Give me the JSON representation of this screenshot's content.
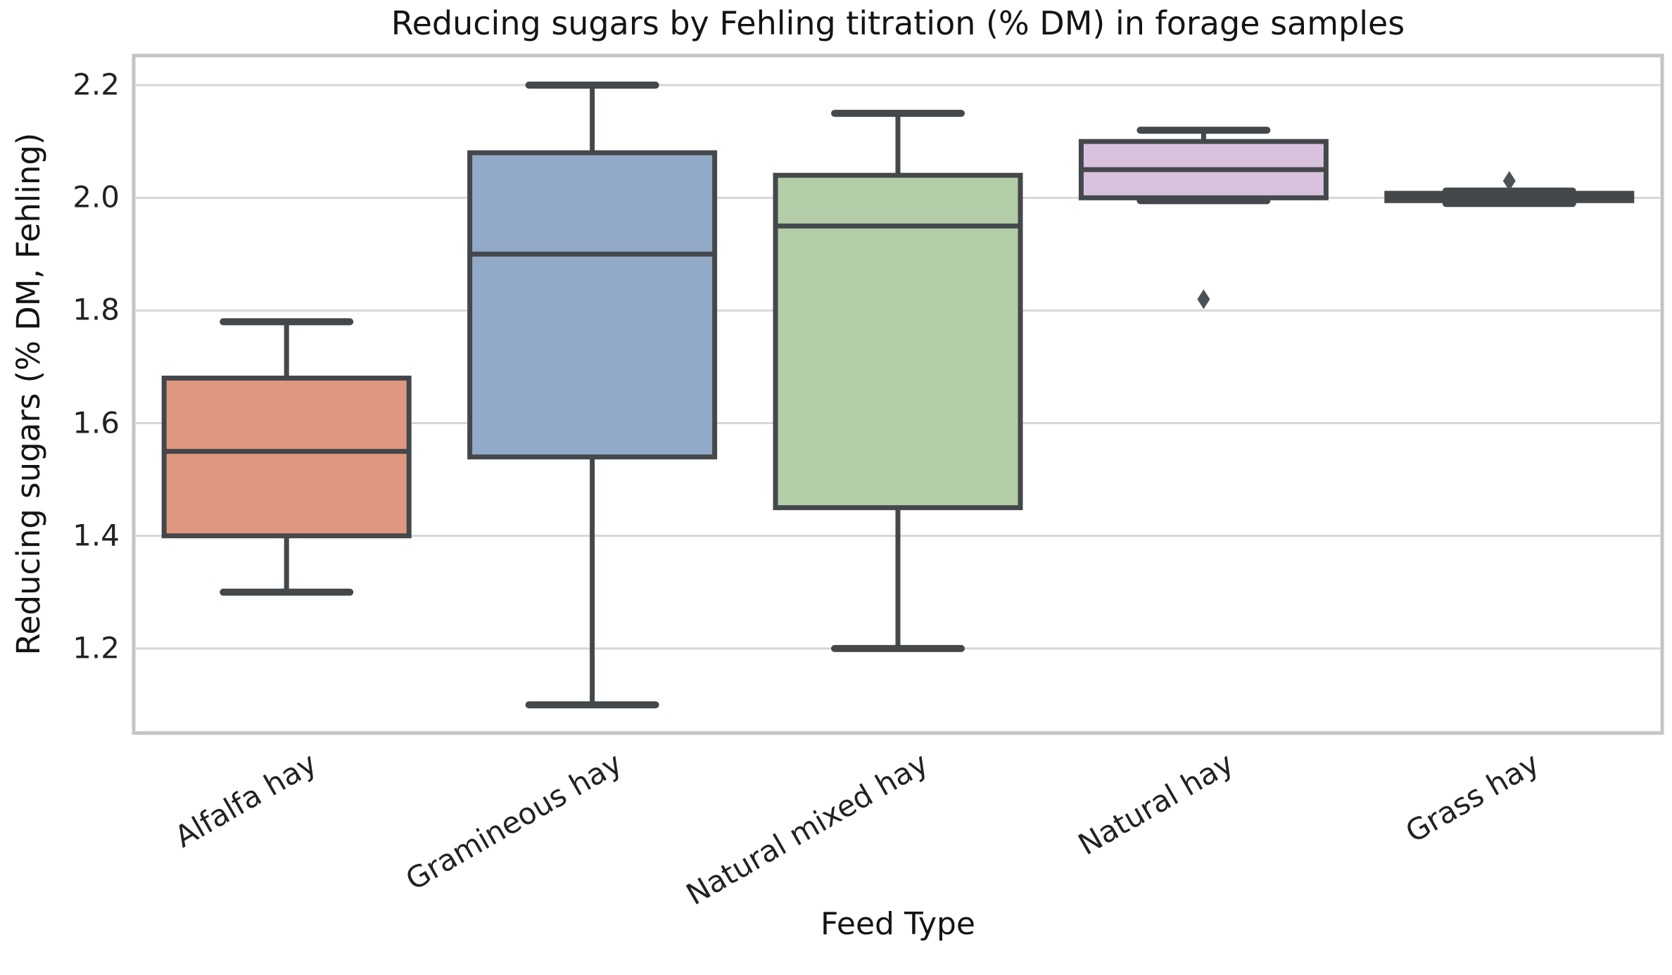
{
  "chart_data": {
    "type": "box",
    "title": "Reducing sugars by Fehling titration (% DM) in forage samples",
    "xlabel": "Feed Type",
    "ylabel": "Reducing sugars (% DM, Fehling)",
    "categories": [
      "Alfalfa hay",
      "Gramineous hay",
      "Natural mixed hay",
      "Natural hay",
      "Grass hay"
    ],
    "ylim": [
      1.05,
      2.2525
    ],
    "ytick_labels": [
      "2.2",
      "2.0",
      "1.8",
      "1.6",
      "1.4",
      "1.2"
    ],
    "grid": true,
    "legend": false,
    "boxes": [
      {
        "category": "Alfalfa hay",
        "whislo": 1.3,
        "q1": 1.4,
        "med": 1.55,
        "q3": 1.68,
        "whishi": 1.78,
        "outliers": [],
        "fill": "#e0977f"
      },
      {
        "category": "Gramineous hay",
        "whislo": 1.1,
        "q1": 1.54,
        "med": 1.9,
        "q3": 2.08,
        "whishi": 2.2,
        "outliers": [],
        "fill": "#92a9c7"
      },
      {
        "category": "Natural mixed hay",
        "whislo": 1.2,
        "q1": 1.45,
        "med": 1.95,
        "q3": 2.04,
        "whishi": 2.15,
        "outliers": [],
        "fill": "#b3cda8"
      },
      {
        "category": "Natural hay",
        "whislo": 1.995,
        "q1": 2.0,
        "med": 2.05,
        "q3": 2.1,
        "whishi": 2.12,
        "outliers": [
          1.82
        ],
        "fill": "#d9c2dd"
      },
      {
        "category": "Grass hay",
        "whislo": 1.99,
        "q1": 1.995,
        "med": 2.002,
        "q3": 2.008,
        "whishi": 2.012,
        "outliers": [
          2.03
        ],
        "fill": "#8c8c8c"
      }
    ],
    "style": {
      "edge_color": "#44484b",
      "median_color": "#44484b",
      "outlier_color": "#4d5155",
      "grid_color": "#d6d6d6",
      "frame_color": "#c4c4c4",
      "background": "#ffffff",
      "text_color": "#141414"
    }
  }
}
